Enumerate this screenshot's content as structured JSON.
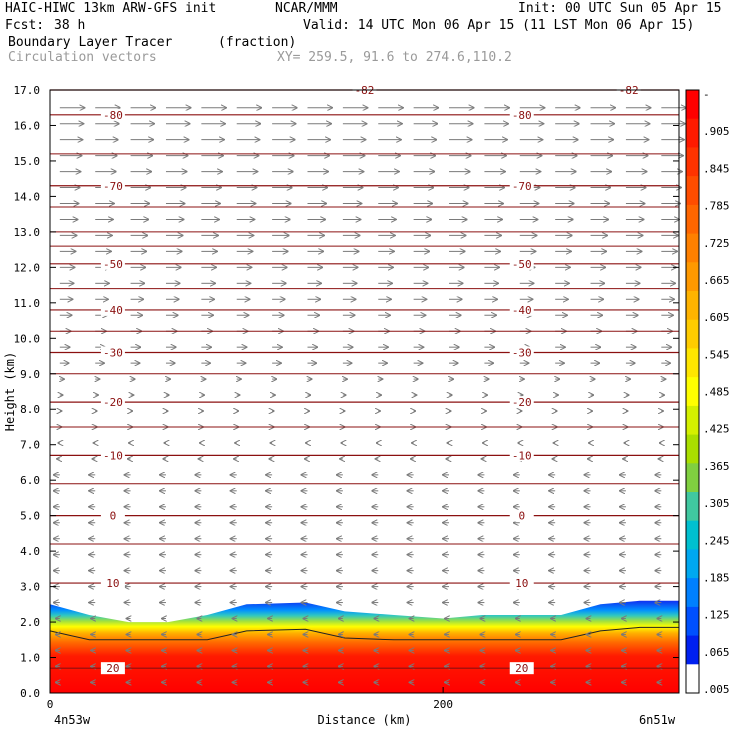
{
  "header": {
    "model": "HAIC-HIWC 13km ARW-GFS init",
    "org": "NCAR/MMM",
    "init": "Init: 00 UTC Sun 05 Apr 15",
    "fcst_label": "Fcst:",
    "fcst_value": "38 h",
    "valid": "Valid: 14 UTC Mon 06 Apr 15 (11 LST Mon 06 Apr 15)",
    "field_name": "Boundary Layer Tracer",
    "field_units": "(fraction)",
    "vectors_label": "Circulation vectors",
    "xy_label": "XY= 259.5, 91.6 to 274.6,110.2"
  },
  "chart_data": {
    "type": "heatmap",
    "xlabel": "Distance (km)",
    "ylabel": "Height (km)",
    "xlim": [
      0,
      320
    ],
    "ylim": [
      0,
      17
    ],
    "x_ticks": [
      {
        "value": 0,
        "label": "0"
      },
      {
        "value": 200,
        "label": "200"
      }
    ],
    "x_end_labels": {
      "left": "4n53w",
      "right": "6n51w"
    },
    "y_ticks": [
      0,
      1,
      2,
      3,
      4,
      5,
      6,
      7,
      8,
      9,
      10,
      11,
      12,
      13,
      14,
      15,
      16,
      17
    ],
    "y_tick_labels": [
      "0.0",
      "1.0",
      "2.0",
      "3.0",
      "4.0",
      "5.0",
      "6.0",
      "7.0",
      "8.0",
      "9.0",
      "10.0",
      "11.0",
      "12.0",
      "13.0",
      "14.0",
      "15.0",
      "16.0",
      "17.0"
    ],
    "colorbar": {
      "labels": [
        "-",
        ".905",
        ".845",
        ".785",
        ".725",
        ".665",
        ".605",
        ".545",
        ".485",
        ".425",
        ".365",
        ".305",
        ".245",
        ".185",
        ".125",
        ".065",
        ".005"
      ],
      "colors": [
        "#ff0000",
        "#ff1a00",
        "#ff3300",
        "#ff4d00",
        "#ff6600",
        "#ff8000",
        "#ff9900",
        "#ffb300",
        "#ffcc00",
        "#ffe600",
        "#ffff00",
        "#d4f000",
        "#aadf00",
        "#80d040",
        "#40c8a0",
        "#00c0d0",
        "#00a8f0",
        "#0080ff",
        "#0050ff",
        "#0020f0",
        "#ffffff"
      ]
    },
    "tracer_top_km": [
      {
        "x": 0,
        "top": 2.5
      },
      {
        "x": 20,
        "top": 2.2
      },
      {
        "x": 40,
        "top": 2.0
      },
      {
        "x": 60,
        "top": 2.0
      },
      {
        "x": 80,
        "top": 2.2
      },
      {
        "x": 100,
        "top": 2.5
      },
      {
        "x": 130,
        "top": 2.55
      },
      {
        "x": 150,
        "top": 2.3
      },
      {
        "x": 175,
        "top": 2.2
      },
      {
        "x": 200,
        "top": 2.1
      },
      {
        "x": 220,
        "top": 2.2
      },
      {
        "x": 260,
        "top": 2.2
      },
      {
        "x": 280,
        "top": 2.5
      },
      {
        "x": 300,
        "top": 2.6
      },
      {
        "x": 320,
        "top": 2.6
      }
    ],
    "temperature_contours": [
      {
        "label": "-82",
        "height_km": 17.0
      },
      {
        "label": "-80",
        "height_km": 16.3
      },
      {
        "label": "-70",
        "height_km": 14.3
      },
      {
        "label": "-50",
        "height_km": 12.1
      },
      {
        "label": "-40",
        "height_km": 10.8
      },
      {
        "label": "-30",
        "height_km": 9.6
      },
      {
        "label": "-20",
        "height_km": 8.2
      },
      {
        "label": "-10",
        "height_km": 6.7
      },
      {
        "label": "0",
        "height_km": 5.0
      },
      {
        "label": "10",
        "height_km": 3.1
      },
      {
        "label": "20",
        "height_km": 0.7
      }
    ],
    "unlabeled_contour_heights_km": [
      15.2,
      13.7,
      13.0,
      12.6,
      11.4,
      10.2,
      9.0,
      7.5,
      5.9,
      4.2
    ],
    "vectors_description": "westerly above ~9 km, easterly below ~6 km, strong upward vectors within the boundary layer"
  }
}
